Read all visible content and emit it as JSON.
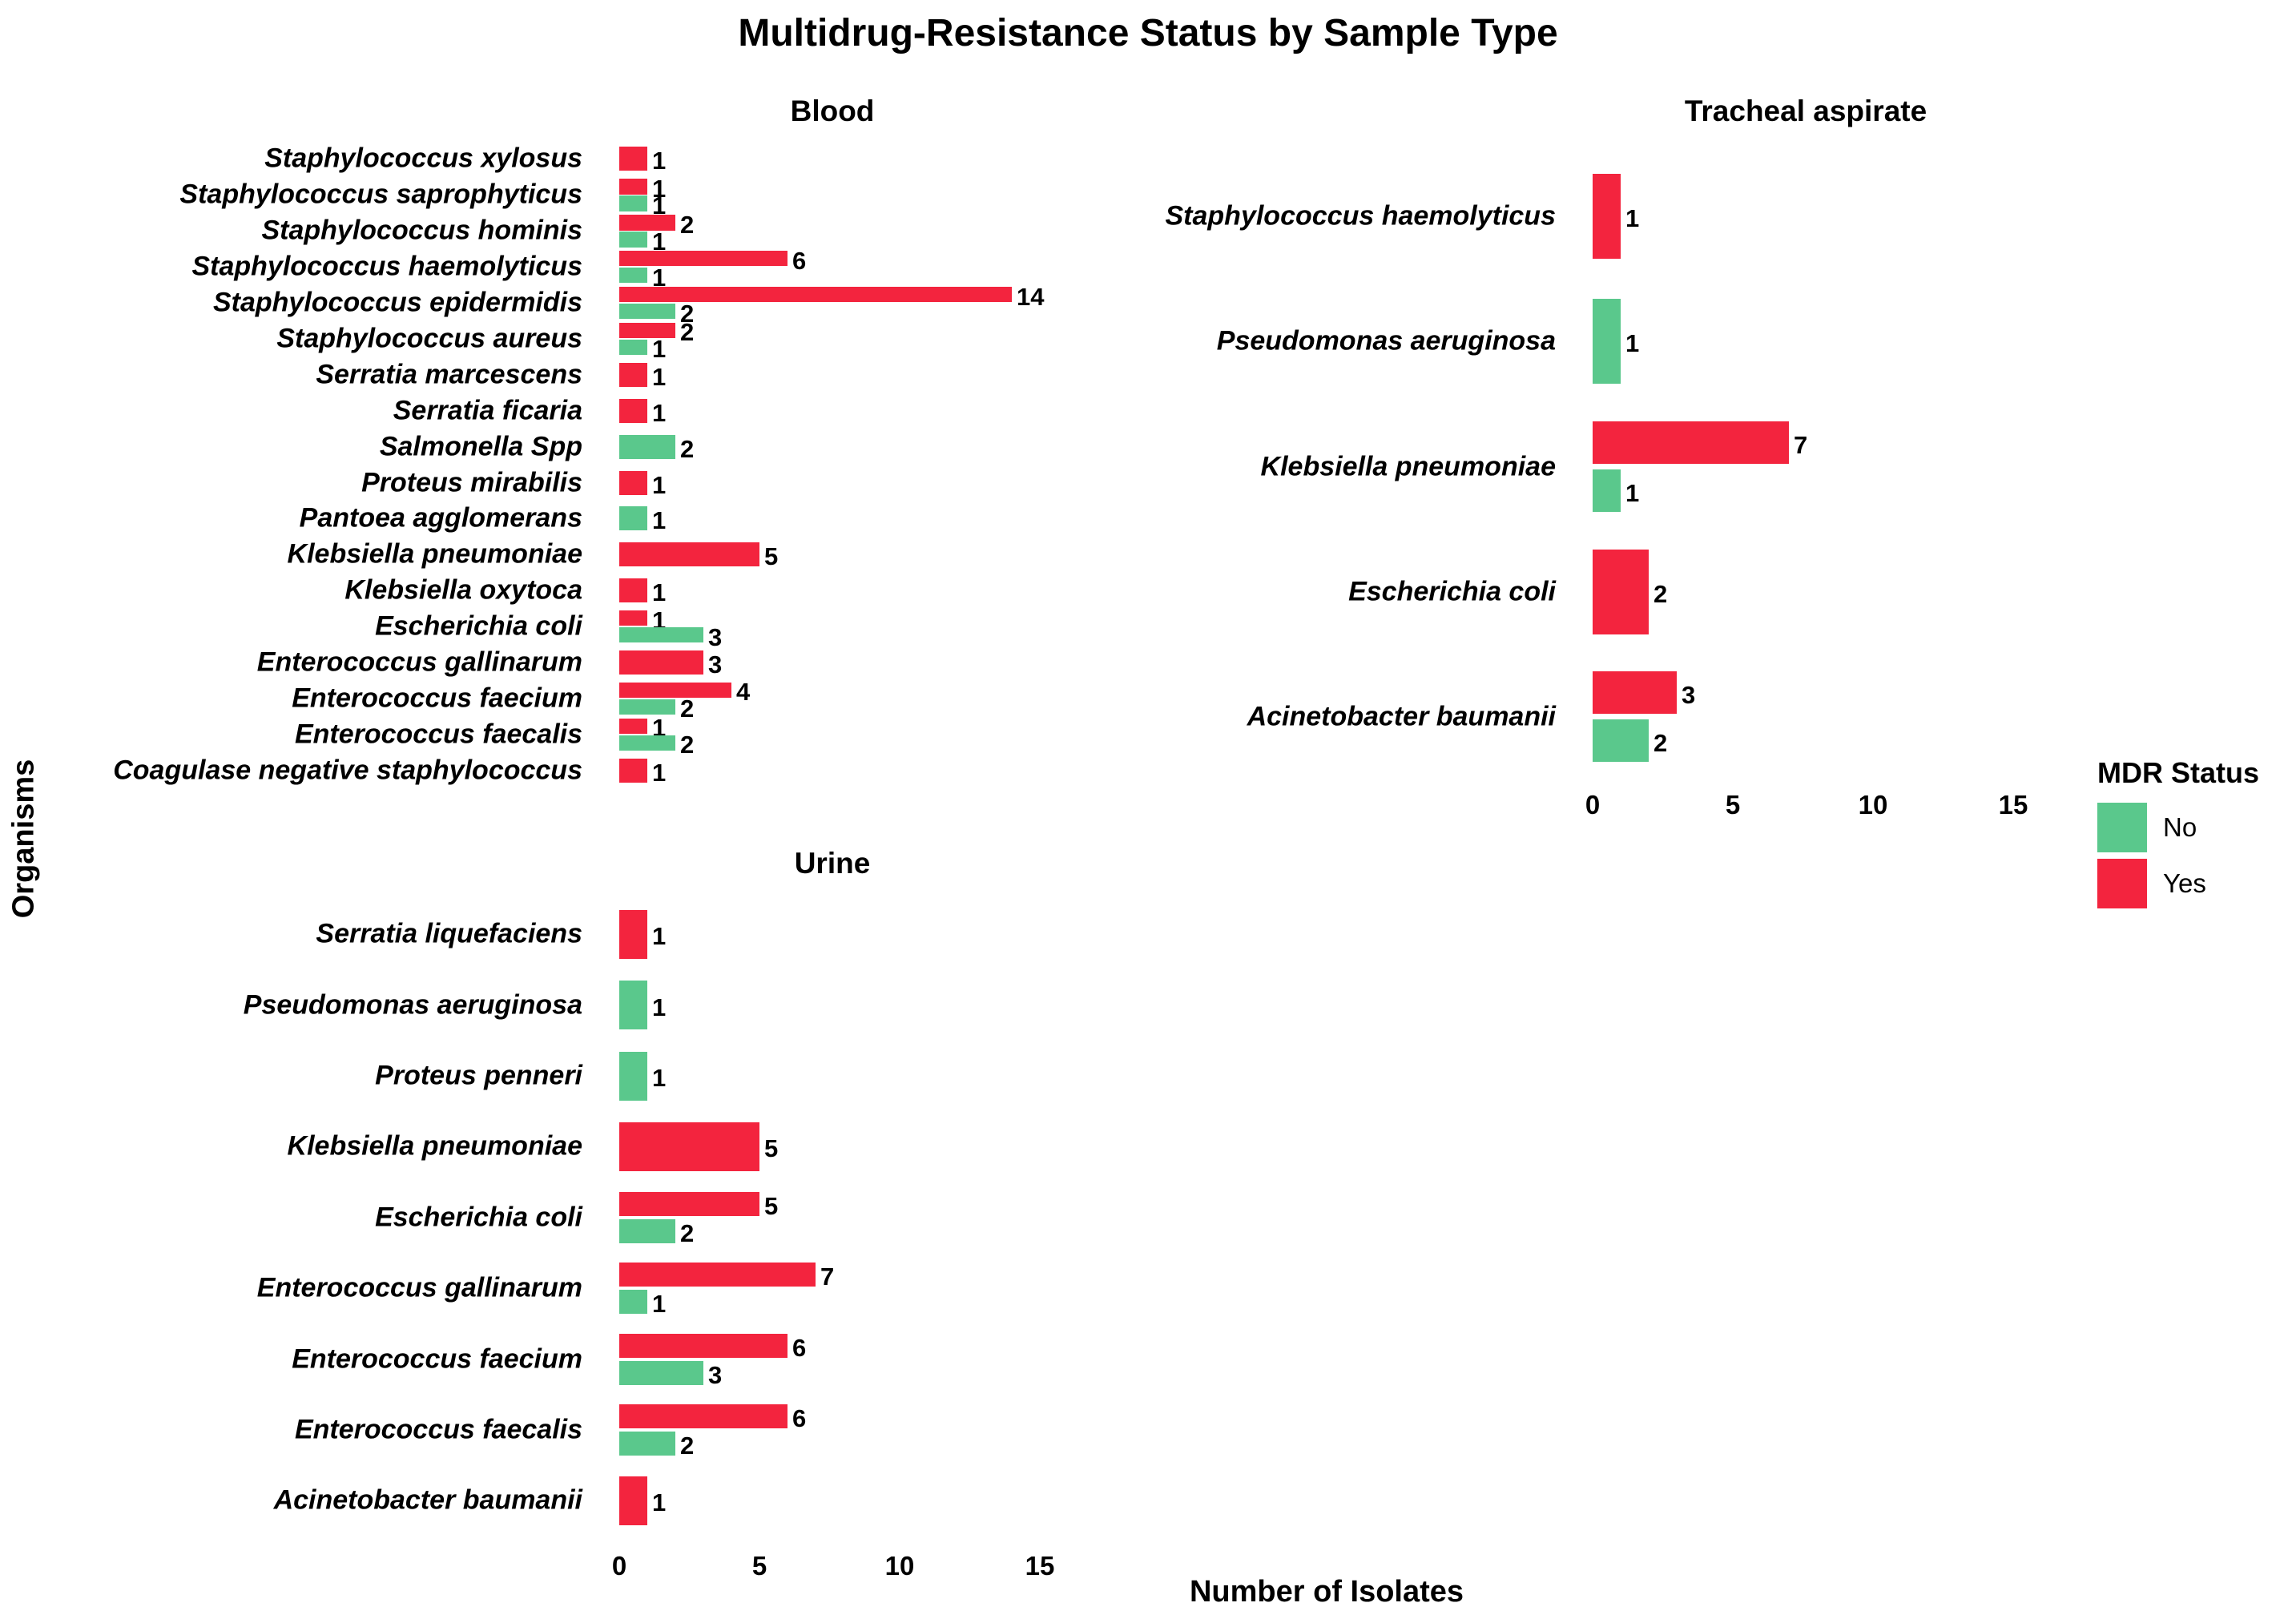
{
  "chart_data": {
    "type": "bar",
    "orientation": "horizontal",
    "title": "Multidrug-Resistance Status by Sample Type",
    "xlabel": "Number of Isolates",
    "ylabel": "Organisms",
    "xlim": [
      0,
      15
    ],
    "xticks": [
      0,
      5,
      10,
      15
    ],
    "grid": false,
    "background": "#ffffff",
    "legend": {
      "title": "MDR Status",
      "position": "right",
      "entries": [
        {
          "label": "No",
          "series": "no",
          "color": "#5AC88C"
        },
        {
          "label": "Yes",
          "series": "yes",
          "color": "#F3243E"
        }
      ]
    },
    "series_order_in_row": [
      "yes",
      "no"
    ],
    "facets": [
      {
        "label": "Blood",
        "rows": [
          {
            "organism": "Staphylococcus xylosus",
            "yes": 1
          },
          {
            "organism": "Staphylococcus saprophyticus",
            "yes": 1,
            "no": 1
          },
          {
            "organism": "Staphylococcus hominis",
            "yes": 2,
            "no": 1
          },
          {
            "organism": "Staphylococcus haemolyticus",
            "yes": 6,
            "no": 1
          },
          {
            "organism": "Staphylococcus epidermidis",
            "yes": 14,
            "no": 2
          },
          {
            "organism": "Staphylococcus aureus",
            "yes": 2,
            "no": 1
          },
          {
            "organism": "Serratia marcescens",
            "yes": 1
          },
          {
            "organism": "Serratia ficaria",
            "yes": 1
          },
          {
            "organism": "Salmonella Spp",
            "no": 2
          },
          {
            "organism": "Proteus mirabilis",
            "yes": 1
          },
          {
            "organism": "Pantoea agglomerans",
            "no": 1
          },
          {
            "organism": "Klebsiella pneumoniae",
            "yes": 5
          },
          {
            "organism": "Klebsiella oxytoca",
            "yes": 1
          },
          {
            "organism": "Escherichia coli",
            "yes": 1,
            "no": 3
          },
          {
            "organism": "Enterococcus gallinarum",
            "yes": 3
          },
          {
            "organism": "Enterococcus faecium",
            "yes": 4,
            "no": 2
          },
          {
            "organism": "Enterococcus faecalis",
            "yes": 1,
            "no": 2
          },
          {
            "organism": "Coagulase negative staphylococcus",
            "yes": 1
          }
        ]
      },
      {
        "label": "Tracheal aspirate",
        "rows": [
          {
            "organism": "Staphylococcus haemolyticus",
            "yes": 1
          },
          {
            "organism": "Pseudomonas aeruginosa",
            "no": 1
          },
          {
            "organism": "Klebsiella pneumoniae",
            "yes": 7,
            "no": 1
          },
          {
            "organism": "Escherichia coli",
            "yes": 2
          },
          {
            "organism": "Acinetobacter baumanii",
            "yes": 3,
            "no": 2
          }
        ]
      },
      {
        "label": "Urine",
        "rows": [
          {
            "organism": "Serratia liquefaciens",
            "yes": 1
          },
          {
            "organism": "Pseudomonas aeruginosa",
            "no": 1
          },
          {
            "organism": "Proteus penneri",
            "no": 1
          },
          {
            "organism": "Klebsiella pneumoniae",
            "yes": 5
          },
          {
            "organism": "Escherichia coli",
            "yes": 5,
            "no": 2
          },
          {
            "organism": "Enterococcus gallinarum",
            "yes": 7,
            "no": 1
          },
          {
            "organism": "Enterococcus faecium",
            "yes": 6,
            "no": 3
          },
          {
            "organism": "Enterococcus faecalis",
            "yes": 6,
            "no": 2
          },
          {
            "organism": "Acinetobacter baumanii",
            "yes": 1
          }
        ]
      }
    ]
  }
}
